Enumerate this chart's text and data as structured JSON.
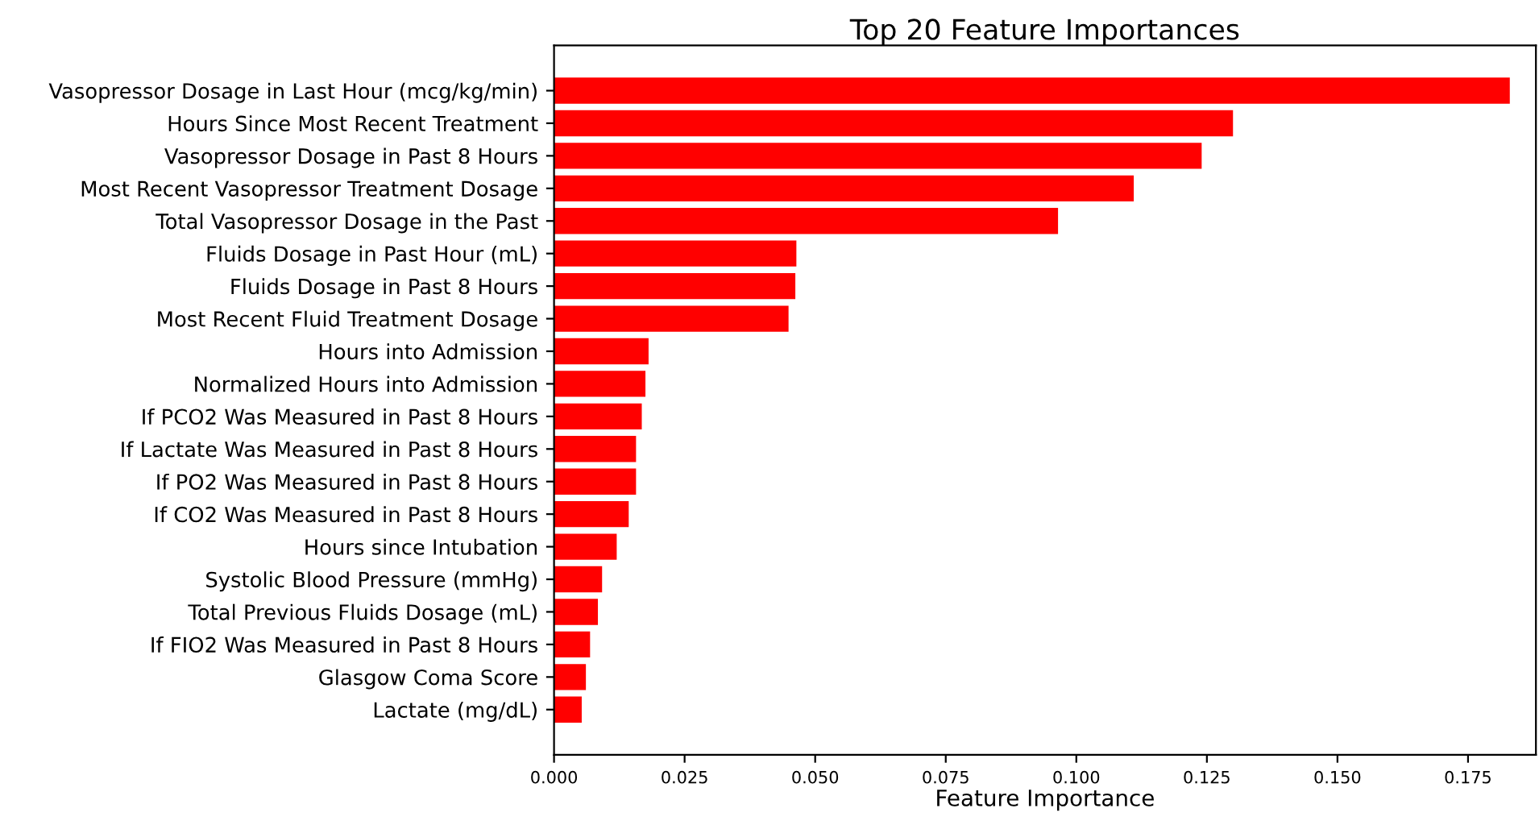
{
  "chart_data": {
    "type": "bar",
    "orientation": "horizontal",
    "title": "Top 20 Feature Importances",
    "xlabel": "Feature Importance",
    "categories": [
      "Vasopressor Dosage in Last Hour (mcg/kg/min)",
      "Hours Since Most Recent Treatment",
      "Vasopressor Dosage in Past 8 Hours",
      "Most Recent Vasopressor Treatment Dosage",
      "Total Vasopressor Dosage in the Past",
      "Fluids Dosage in Past Hour (mL)",
      "Fluids Dosage in Past 8 Hours",
      "Most Recent Fluid Treatment Dosage",
      "Hours into Admission",
      "Normalized Hours into Admission",
      "If PCO2 Was Measured in Past 8 Hours",
      "If Lactate Was Measured in Past 8 Hours",
      "If PO2 Was Measured in Past 8 Hours",
      "If CO2 Was Measured in Past 8 Hours",
      "Hours since Intubation",
      "Systolic Blood Pressure (mmHg)",
      "Total Previous Fluids Dosage (mL)",
      "If FIO2 Was Measured in Past 8 Hours",
      "Glasgow Coma Score",
      "Lactate (mg/dL)"
    ],
    "values": [
      0.183,
      0.13,
      0.124,
      0.111,
      0.0965,
      0.0464,
      0.0462,
      0.0449,
      0.0181,
      0.0175,
      0.0168,
      0.0157,
      0.0157,
      0.0143,
      0.012,
      0.0092,
      0.0084,
      0.0069,
      0.0061,
      0.0053
    ],
    "color": "#ff0000",
    "xlim": [
      0,
      0.188
    ],
    "xticks": [
      {
        "value": 0,
        "label": "0.000"
      },
      {
        "value": 0.025,
        "label": "0.025"
      },
      {
        "value": 0.05,
        "label": "0.050"
      },
      {
        "value": 0.075,
        "label": "0.075"
      },
      {
        "value": 0.1,
        "label": "0.100"
      },
      {
        "value": 0.125,
        "label": "0.125"
      },
      {
        "value": 0.15,
        "label": "0.150"
      },
      {
        "value": 0.175,
        "label": "0.175"
      }
    ],
    "grid": false
  }
}
